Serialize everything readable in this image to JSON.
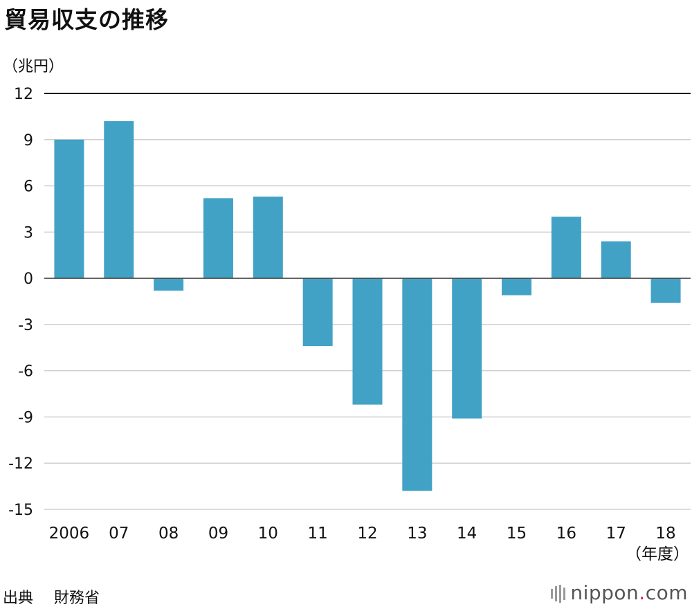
{
  "chart_data": {
    "type": "bar",
    "title": "貿易収支の推移",
    "ylabel": "（兆円）",
    "xlabel": "（年度）",
    "categories": [
      "2006",
      "07",
      "08",
      "09",
      "10",
      "11",
      "12",
      "13",
      "14",
      "15",
      "16",
      "17",
      "18"
    ],
    "values": [
      9.0,
      10.2,
      -0.8,
      5.2,
      5.3,
      -4.4,
      -8.2,
      -13.8,
      -9.1,
      -1.1,
      4.0,
      2.4,
      -1.6
    ],
    "ylim": [
      -15,
      12
    ],
    "yticks": [
      "12",
      "9",
      "6",
      "3",
      "0",
      "-3",
      "-6",
      "-9",
      "-12",
      "-15"
    ],
    "grid": true,
    "bar_color": "#42a2c6"
  },
  "source": {
    "label": "出典",
    "value": "財務省"
  },
  "logo": {
    "main": "nippon",
    "dot": ".",
    "suffix": "com"
  }
}
